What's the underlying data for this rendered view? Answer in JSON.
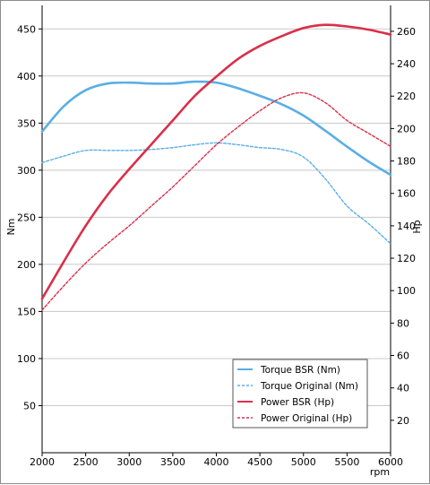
{
  "chart_data": {
    "type": "line",
    "x": [
      2000,
      2250,
      2500,
      2750,
      3000,
      3250,
      3500,
      3750,
      4000,
      4250,
      4500,
      4750,
      5000,
      5250,
      5500,
      5750,
      6000
    ],
    "x_ticks": [
      "2000",
      "2500",
      "3000",
      "3500",
      "4000",
      "4500",
      "5000",
      "5500",
      "6000"
    ],
    "x_tick_values": [
      2000,
      2500,
      3000,
      3500,
      4000,
      4500,
      5000,
      5500,
      6000
    ],
    "xlabel": "rpm",
    "xlim": [
      2000,
      6000
    ],
    "ylabel_left": "Nm",
    "ylim_left": [
      0,
      475
    ],
    "y_ticks_left": [
      "50",
      "100",
      "150",
      "200",
      "250",
      "300",
      "350",
      "400",
      "450"
    ],
    "y_tick_values_left": [
      50,
      100,
      150,
      200,
      250,
      300,
      350,
      400,
      450
    ],
    "ylabel_right": "Hp",
    "ylim_right": [
      0,
      276
    ],
    "y_ticks_right": [
      "20",
      "40",
      "60",
      "80",
      "100",
      "120",
      "140",
      "160",
      "180",
      "200",
      "220",
      "240",
      "260"
    ],
    "y_tick_values_right": [
      20,
      40,
      60,
      80,
      100,
      120,
      140,
      160,
      180,
      200,
      220,
      240,
      260
    ],
    "grid": true,
    "legend_position": "bottom-right",
    "series": [
      {
        "name": "Torque BSR (Nm)",
        "axis": "left",
        "style": "solid",
        "color": "#5aaee6",
        "values": [
          341,
          368,
          385,
          392,
          393,
          392,
          392,
          394,
          393,
          387,
          379,
          370,
          358,
          342,
          325,
          309,
          295
        ]
      },
      {
        "name": "Torque Original (Nm)",
        "axis": "left",
        "style": "dashed",
        "color": "#5aaee6",
        "values": [
          308,
          315,
          321,
          321,
          321,
          322,
          324,
          327,
          329,
          327,
          324,
          322,
          314,
          291,
          262,
          243,
          222
        ]
      },
      {
        "name": "Power BSR (Hp)",
        "axis": "right",
        "style": "solid",
        "color": "#d9304a",
        "values": [
          95,
          118,
          140,
          159,
          175,
          190,
          205,
          220,
          232,
          243,
          251,
          257,
          262,
          264,
          263,
          261,
          258
        ]
      },
      {
        "name": "Power Original (Hp)",
        "axis": "right",
        "style": "dashed",
        "color": "#d9304a",
        "values": [
          88,
          103,
          117,
          129,
          140,
          152,
          164,
          177,
          190,
          201,
          211,
          219,
          222,
          216,
          205,
          197,
          189
        ]
      }
    ]
  }
}
